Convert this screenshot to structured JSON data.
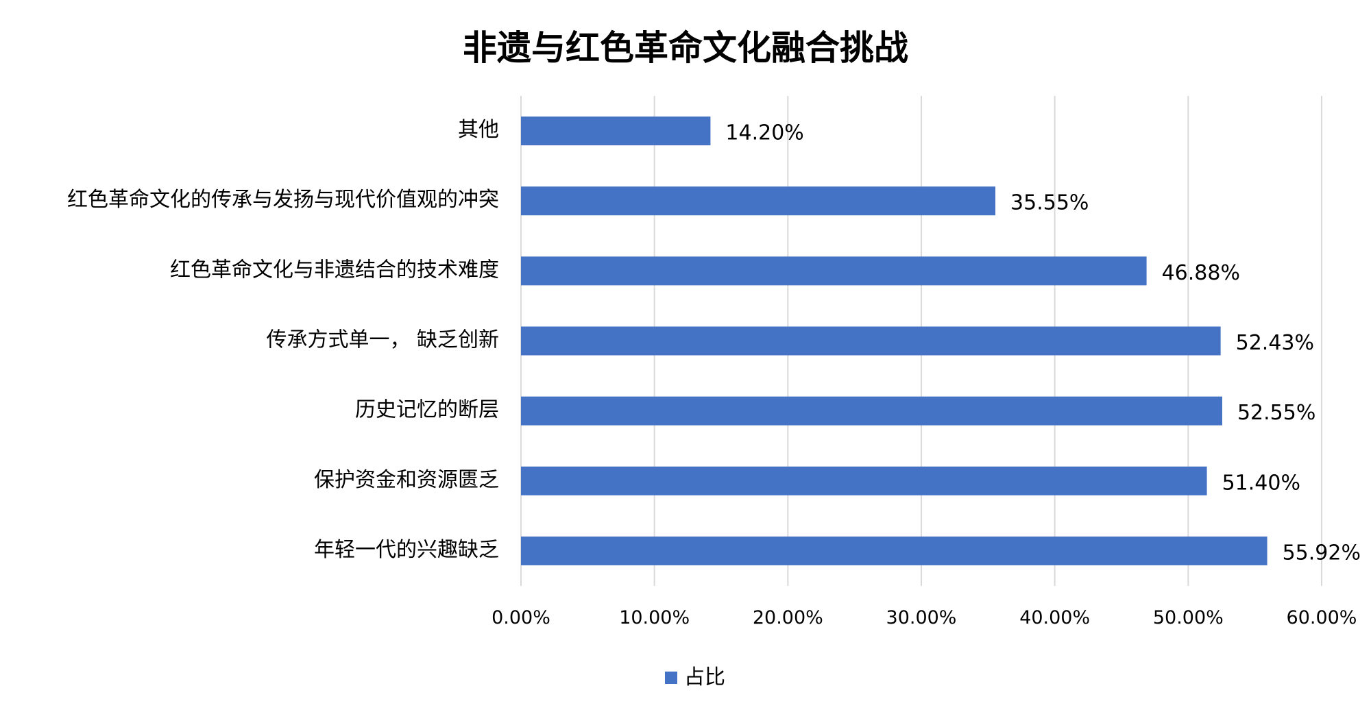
{
  "chart_data": {
    "type": "bar",
    "orientation": "horizontal",
    "title": "非遗与红色革命文化融合挑战",
    "categories": [
      "其他",
      "红色革命文化的传承与发扬与现代价值观的冲突",
      "红色革命文化与非遗结合的技术难度",
      "传承方式单一， 缺乏创新",
      "历史记忆的断层",
      "保护资金和资源匮乏",
      "年轻一代的兴趣缺乏"
    ],
    "series": [
      {
        "name": "占比",
        "values": [
          14.2,
          35.55,
          46.88,
          52.43,
          52.55,
          51.4,
          55.92
        ],
        "data_labels": [
          "14.20%",
          "35.55%",
          "46.88%",
          "52.43%",
          "52.55%",
          "51.40%",
          "55.92%"
        ],
        "color": "#4472C4"
      }
    ],
    "xlim": [
      0,
      60
    ],
    "x_ticks": [
      "0.00%",
      "10.00%",
      "20.00%",
      "30.00%",
      "40.00%",
      "50.00%",
      "60.00%"
    ],
    "grid": true,
    "gridline_color": "#D9D9D9",
    "legend": {
      "position": "bottom",
      "entries": [
        "占比"
      ]
    }
  }
}
